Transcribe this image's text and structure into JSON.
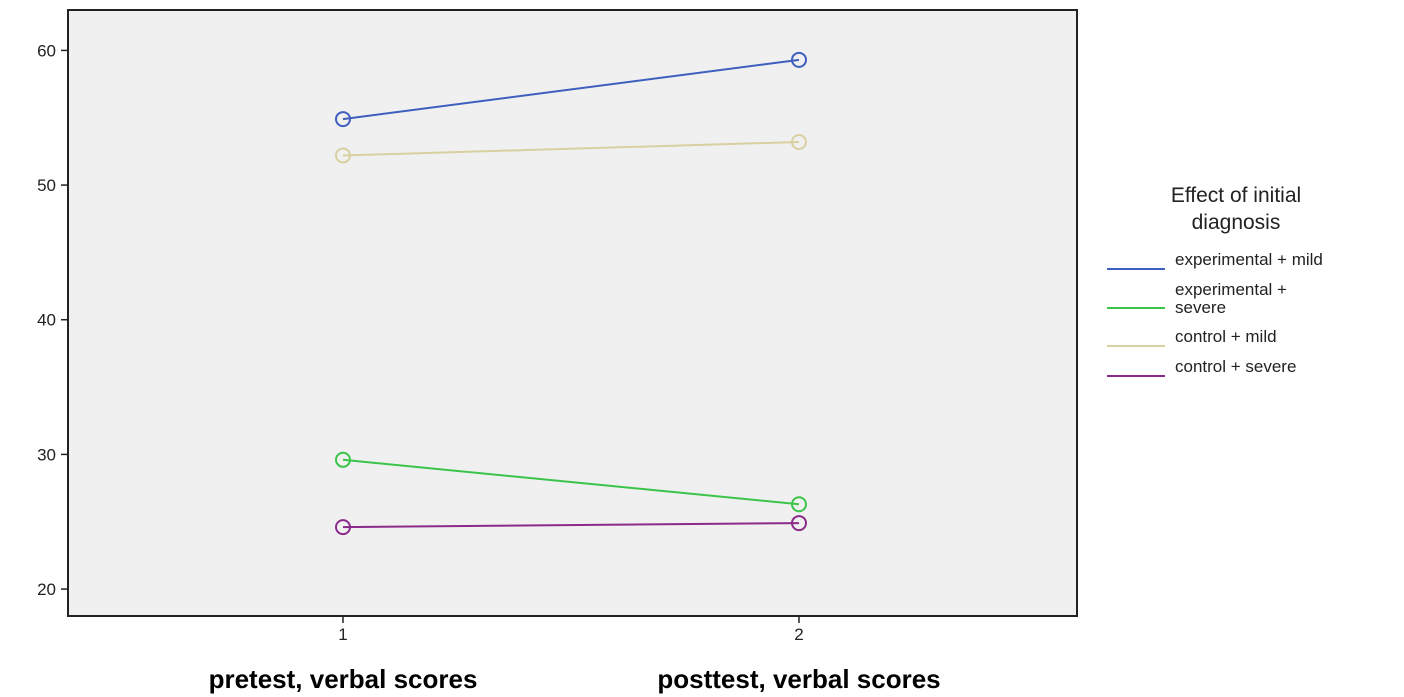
{
  "chart_data": {
    "type": "line",
    "title": "",
    "xlabel": "",
    "ylabel": "",
    "x": [
      "1",
      "2"
    ],
    "category_labels": [
      "pretest, verbal scores",
      "posttest, verbal scores"
    ],
    "ylim": [
      18,
      63
    ],
    "yticks": [
      "20",
      "30",
      "40",
      "50",
      "60"
    ],
    "grid": false,
    "legend_position": "right",
    "legend_title_lines": [
      "Effect of initial",
      "diagnosis"
    ],
    "series": [
      {
        "name_lines": [
          "experimental + mild"
        ],
        "color": "#3f5fbf",
        "values": [
          54.9,
          59.3
        ]
      },
      {
        "name_lines": [
          "experimental +",
          "severe"
        ],
        "color": "#3cc44a",
        "values": [
          29.6,
          26.3
        ]
      },
      {
        "name_lines": [
          "control + mild"
        ],
        "color": "#d8d0a0",
        "values": [
          52.2,
          53.2
        ]
      },
      {
        "name_lines": [
          "control + severe"
        ],
        "color": "#8a2a8a",
        "values": [
          24.6,
          24.9
        ]
      }
    ],
    "plot_background": "#f0f0f0",
    "marker": "open-circle"
  }
}
